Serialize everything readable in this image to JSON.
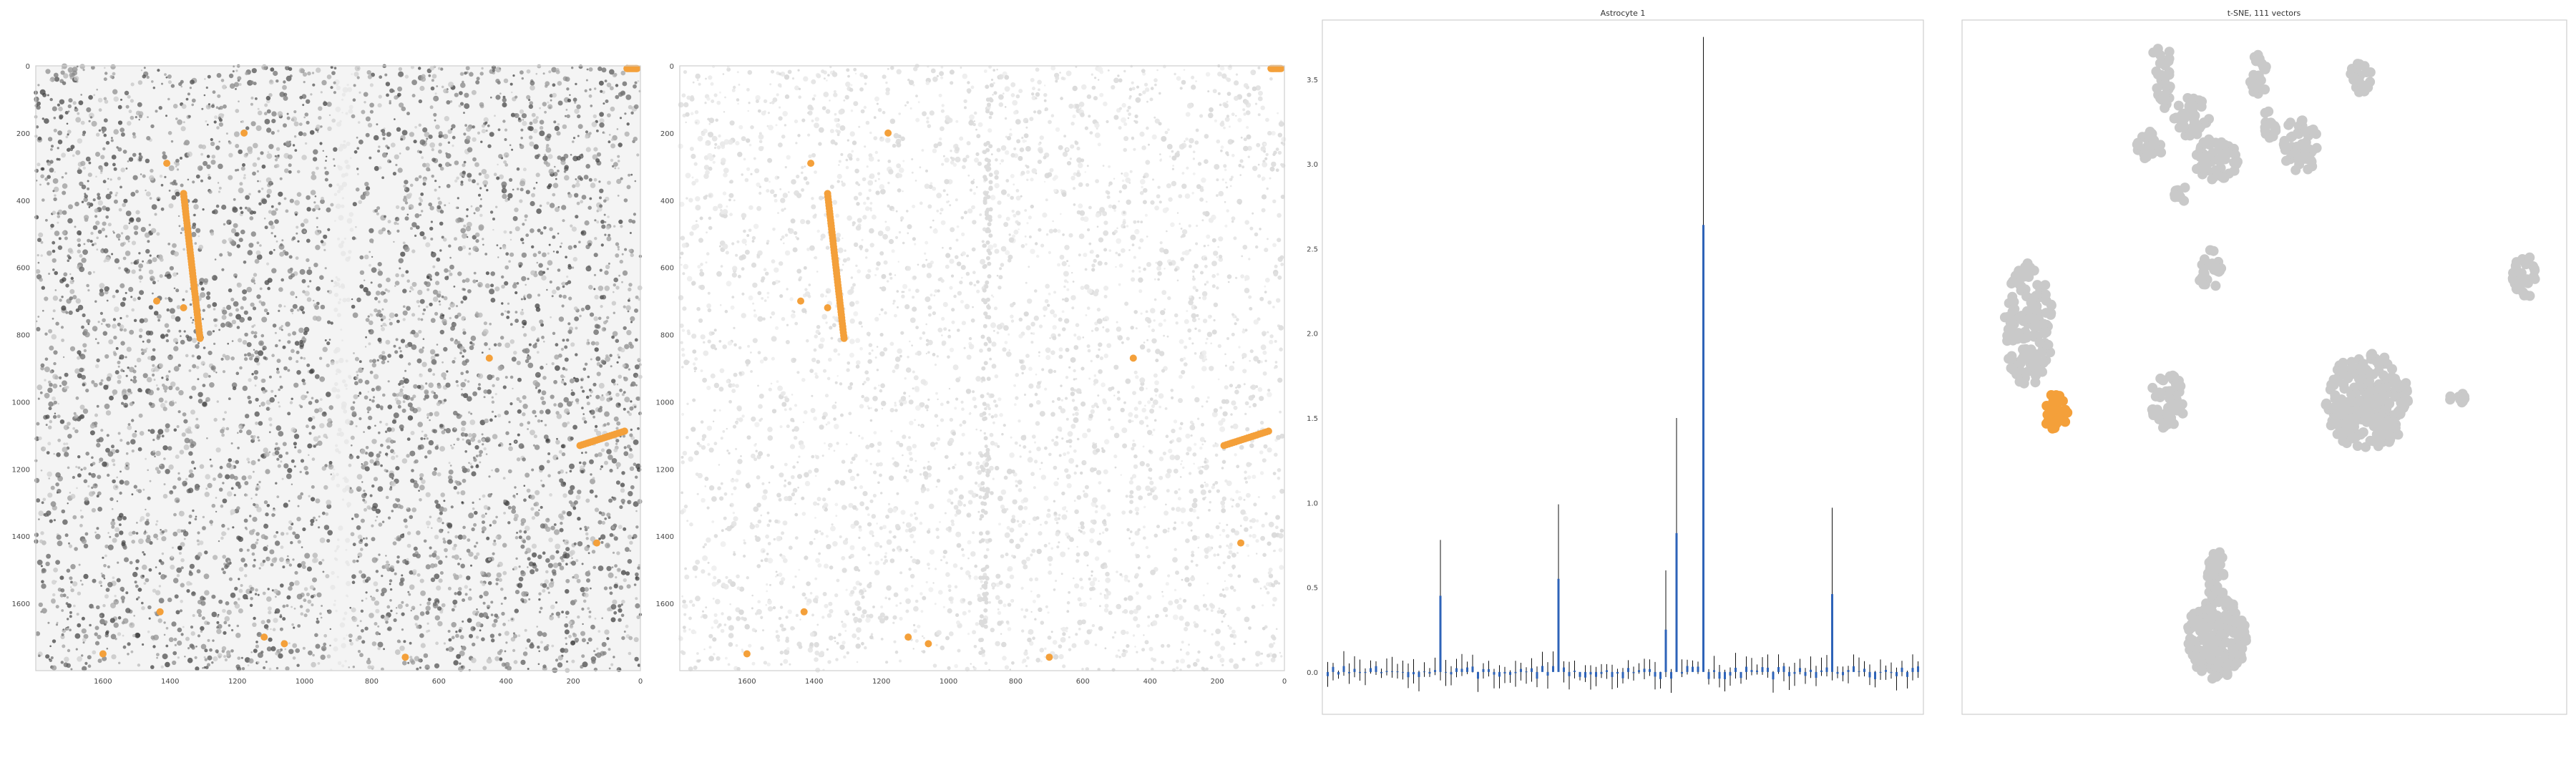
{
  "colors": {
    "highlight": "#f4a03a",
    "cloud": "#c9c9c9",
    "mean_bar": "#2e63b8",
    "error_bar": "#111111",
    "frame": "#cfcfcf",
    "tissue_dark": "#4a4a4a",
    "tissue_light": "#e6e6e6"
  },
  "chart_data": [
    {
      "type": "heatmap",
      "title": "",
      "xlabel": "",
      "ylabel": "",
      "x_ticks": [
        1600,
        1400,
        1200,
        1000,
        800,
        600,
        400,
        200,
        0
      ],
      "y_ticks": [
        0,
        200,
        400,
        600,
        800,
        1000,
        1200,
        1400,
        1600
      ],
      "xlim": [
        1800,
        0
      ],
      "ylim": [
        1800,
        0
      ],
      "background": "grayscale tissue section",
      "highlight_color": "orange"
    },
    {
      "type": "scatter",
      "title": "",
      "xlabel": "",
      "ylabel": "",
      "x_ticks": [
        1600,
        1400,
        1200,
        1000,
        800,
        600,
        400,
        200,
        0
      ],
      "y_ticks": [
        0,
        200,
        400,
        600,
        800,
        1000,
        1200,
        1400,
        1600
      ],
      "xlim": [
        1800,
        0
      ],
      "ylim": [
        1800,
        0
      ],
      "background": "light gray cell mask",
      "highlight_color": "orange"
    },
    {
      "type": "bar",
      "title": "Astrocyte 1",
      "xlabel": "",
      "ylabel": "",
      "ylim": [
        -0.25,
        3.85
      ],
      "y_ticks": [
        0.0,
        0.5,
        1.0,
        1.5,
        2.0,
        2.5,
        3.0,
        3.5
      ],
      "grid": false,
      "n_categories": 111,
      "spikes": [
        {
          "index": 21,
          "mean": 0.45,
          "upper": 0.78,
          "lower": -0.05
        },
        {
          "index": 43,
          "mean": 0.55,
          "upper": 0.99,
          "lower": 0.02
        },
        {
          "index": 63,
          "mean": 0.25,
          "upper": 0.6,
          "lower": -0.03
        },
        {
          "index": 65,
          "mean": 0.82,
          "upper": 1.5,
          "lower": 0.05
        },
        {
          "index": 70,
          "mean": 2.64,
          "upper": 3.75,
          "lower": 1.52
        },
        {
          "index": 94,
          "mean": 0.46,
          "upper": 0.97,
          "lower": -0.05
        }
      ]
    },
    {
      "type": "scatter",
      "title": "t-SNE, 111 vectors",
      "xlabel": "",
      "ylabel": "",
      "axes": "off",
      "highlight_color": "orange"
    }
  ]
}
